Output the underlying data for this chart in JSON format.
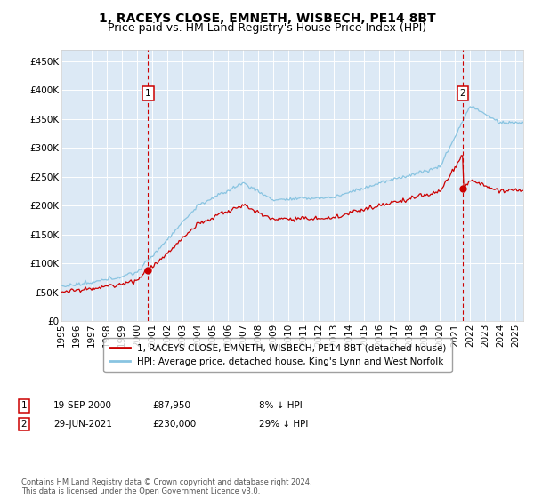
{
  "title": "1, RACEYS CLOSE, EMNETH, WISBECH, PE14 8BT",
  "subtitle": "Price paid vs. HM Land Registry's House Price Index (HPI)",
  "background_color": "#dce9f5",
  "grid_color": "#ffffff",
  "ylim": [
    0,
    470000
  ],
  "yticks": [
    0,
    50000,
    100000,
    150000,
    200000,
    250000,
    300000,
    350000,
    400000,
    450000
  ],
  "ytick_labels": [
    "£0",
    "£50K",
    "£100K",
    "£150K",
    "£200K",
    "£250K",
    "£300K",
    "£350K",
    "£400K",
    "£450K"
  ],
  "sale1_date": 2000.72,
  "sale1_price": 87950,
  "sale1_label": "1",
  "sale2_date": 2021.49,
  "sale2_price": 230000,
  "sale2_label": "2",
  "hpi_color": "#89c4e1",
  "price_color": "#cc0000",
  "legend_label1": "1, RACEYS CLOSE, EMNETH, WISBECH, PE14 8BT (detached house)",
  "legend_label2": "HPI: Average price, detached house, King's Lynn and West Norfolk",
  "table_row1": [
    "1",
    "19-SEP-2000",
    "£87,950",
    "8% ↓ HPI"
  ],
  "table_row2": [
    "2",
    "29-JUN-2021",
    "£230,000",
    "29% ↓ HPI"
  ],
  "footer": "Contains HM Land Registry data © Crown copyright and database right 2024.\nThis data is licensed under the Open Government Licence v3.0.",
  "title_fontsize": 10,
  "subtitle_fontsize": 9,
  "tick_fontsize": 7.5
}
